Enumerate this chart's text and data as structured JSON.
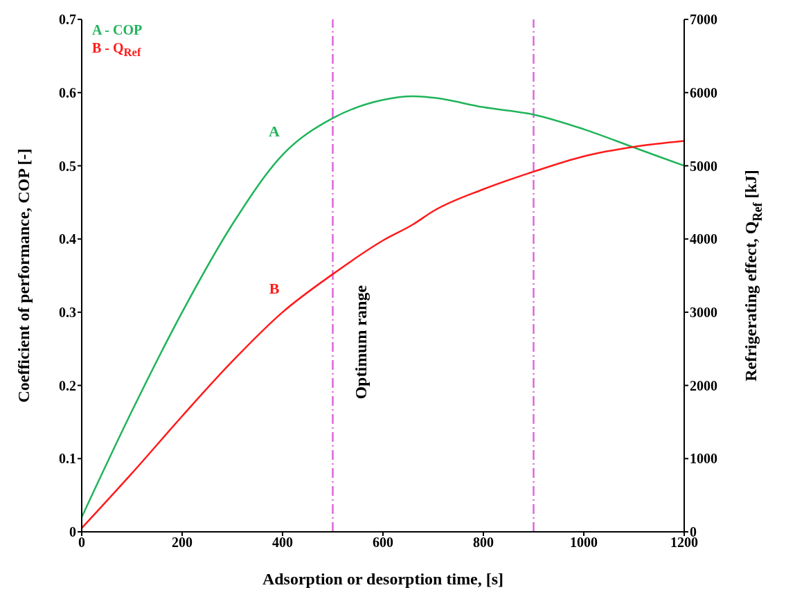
{
  "chart_data": {
    "type": "line",
    "xlabel": "Adsorption or desorption time, [s]",
    "ylabel": "Coefficient of performance, COP [-]",
    "y2label": "Refrigerating effect, Q$_{Ref}$ [kJ]",
    "x": [
      0,
      100,
      200,
      300,
      400,
      500,
      600,
      660,
      700,
      800,
      900,
      1000,
      1100,
      1200
    ],
    "series": [
      {
        "name": "A - COP",
        "color": "#1fb45a",
        "values": [
          0.02,
          0.165,
          0.3,
          0.42,
          0.515,
          0.565,
          0.59,
          0.595,
          0.593,
          0.58,
          0.57,
          0.55,
          0.525,
          0.5
        ]
      },
      {
        "name": "B - Q$_{Ref}$",
        "color": "#ff1a1a",
        "axis": "y2",
        "values": [
          50,
          800,
          1580,
          2330,
          3000,
          3520,
          3980,
          4200,
          4380,
          4680,
          4920,
          5130,
          5260,
          5340
        ]
      }
    ],
    "xlim": [
      0,
      1200
    ],
    "xticks": [
      0,
      200,
      400,
      600,
      800,
      1000,
      1200
    ],
    "ylim": [
      0,
      0.7
    ],
    "yticks": [
      0,
      0.1,
      0.2,
      0.3,
      0.4,
      0.5,
      0.6,
      0.7
    ],
    "y2lim": [
      0,
      7000
    ],
    "y2ticks": [
      0,
      1000,
      2000,
      3000,
      4000,
      5000,
      6000,
      7000
    ],
    "ref_lines": [
      {
        "axis": "x",
        "value": 500,
        "color": "#dd66dd",
        "line_style": "dashdot"
      },
      {
        "axis": "x",
        "value": 900,
        "color": "#dd66dd",
        "line_style": "dashdot"
      }
    ],
    "annotations": [
      "A",
      "B",
      "Optimum range"
    ],
    "grid": false,
    "legend": "top left",
    "marker": "none",
    "line_style": "solid"
  }
}
